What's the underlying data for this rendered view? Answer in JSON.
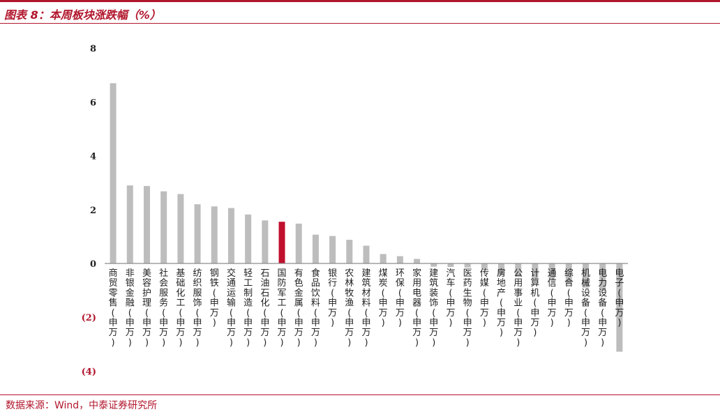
{
  "header": {
    "title": "图表 8：本周板块涨跌幅（%）"
  },
  "footer": {
    "source": "数据来源：Wind，中泰证券研究所"
  },
  "colors": {
    "accent": "#b1162c",
    "bar": "#bdbdbd",
    "highlight_bar": "#c0102e"
  },
  "chart_data": {
    "type": "bar",
    "title": "",
    "xlabel": "",
    "ylabel": "",
    "ylim": [
      -4,
      8
    ],
    "yticks": [
      "8",
      "6",
      "4",
      "2",
      "0",
      "(2)",
      "(4)"
    ],
    "ytick_values": [
      8,
      6,
      4,
      2,
      0,
      -2,
      -4
    ],
    "negative_tick_color": "#b1162c",
    "highlight_category": "国防军工(申万)",
    "grid": false,
    "categories": [
      "商贸零售(申万)",
      "非银金融(申万)",
      "美容护理(申万)",
      "社会服务(申万)",
      "基础化工(申万)",
      "纺织服饰(申万)",
      "钢铁(申万)",
      "交通运输(申万)",
      "轻工制造(申万)",
      "石油石化(申万)",
      "国防军工(申万)",
      "有色金属(申万)",
      "食品饮料(申万)",
      "银行(申万)",
      "农林牧渔(申万)",
      "建筑材料(申万)",
      "煤炭(申万)",
      "环保(申万)",
      "家用电器(申万)",
      "建筑装饰(申万)",
      "汽车(申万)",
      "医药生物(申万)",
      "传媒(申万)",
      "房地产(申万)",
      "公用事业(申万)",
      "计算机(申万)",
      "通信(申万)",
      "综合(申万)",
      "机械设备(申万)",
      "电力设备(申万)",
      "电子(申万)"
    ],
    "values": [
      6.7,
      2.9,
      2.88,
      2.68,
      2.58,
      2.2,
      2.12,
      2.06,
      1.82,
      1.6,
      1.55,
      1.48,
      1.07,
      1.02,
      0.88,
      0.66,
      0.35,
      0.27,
      0.17,
      -0.12,
      -0.13,
      -0.15,
      -0.2,
      -0.45,
      -0.5,
      -0.55,
      -0.6,
      -0.78,
      -0.9,
      -1.02,
      -3.28
    ]
  }
}
